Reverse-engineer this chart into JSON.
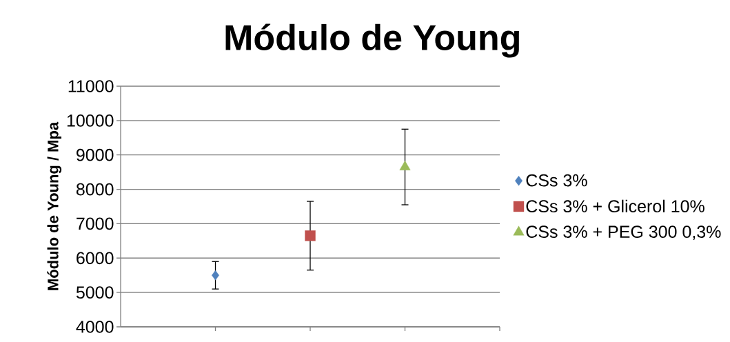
{
  "chart_data": {
    "type": "scatter",
    "title": "Módulo de Young",
    "ylabel": "Módulo de Young / Mpa",
    "categories": [
      null,
      null,
      null
    ],
    "ylim": [
      4000,
      11000
    ],
    "yticks": [
      4000,
      5000,
      6000,
      7000,
      8000,
      9000,
      10000,
      11000
    ],
    "grid": "y",
    "legend": "right",
    "series": [
      {
        "name": "CSs 3%",
        "color": "#4f81bd",
        "marker": "diamond",
        "values": [
          5500,
          null,
          null
        ],
        "errors": [
          400,
          null,
          null
        ]
      },
      {
        "name": "CSs 3% + Glicerol 10%",
        "color": "#c0504d",
        "marker": "square",
        "values": [
          null,
          6650,
          null
        ],
        "errors": [
          null,
          1000,
          null
        ]
      },
      {
        "name": "CSs 3% + PEG 300 0,3%",
        "color": "#9bbb59",
        "marker": "triangle",
        "values": [
          null,
          null,
          8650
        ],
        "errors": [
          null,
          null,
          1100
        ]
      }
    ]
  }
}
